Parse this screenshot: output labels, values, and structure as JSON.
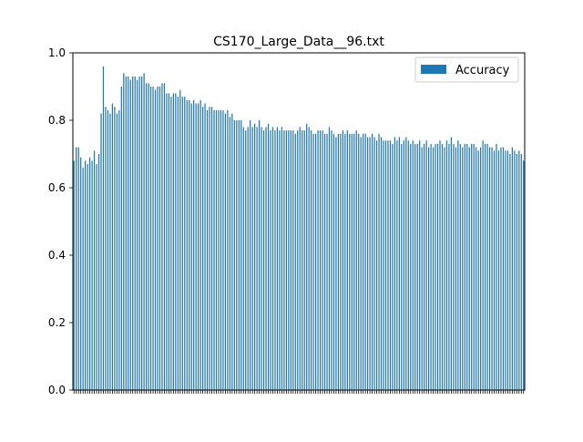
{
  "chart_data": {
    "type": "bar",
    "title": "CS170_Large_Data__96.txt",
    "xlabel": "",
    "ylabel": "",
    "ylim": [
      0.0,
      1.0
    ],
    "yticks": [
      "0.0",
      "0.2",
      "0.4",
      "0.6",
      "0.8",
      "1.0"
    ],
    "grid": false,
    "legend": {
      "placement": "top-right"
    },
    "bar_color": "#1f77b4",
    "series": [
      {
        "name": "Accuracy",
        "values": [
          0.68,
          0.72,
          0.72,
          0.69,
          0.66,
          0.68,
          0.67,
          0.69,
          0.68,
          0.71,
          0.67,
          0.7,
          0.82,
          0.96,
          0.84,
          0.83,
          0.82,
          0.85,
          0.84,
          0.82,
          0.83,
          0.9,
          0.94,
          0.93,
          0.93,
          0.92,
          0.93,
          0.93,
          0.92,
          0.93,
          0.93,
          0.94,
          0.91,
          0.91,
          0.9,
          0.9,
          0.89,
          0.9,
          0.9,
          0.91,
          0.91,
          0.88,
          0.88,
          0.87,
          0.88,
          0.88,
          0.87,
          0.89,
          0.87,
          0.87,
          0.86,
          0.86,
          0.85,
          0.86,
          0.85,
          0.85,
          0.86,
          0.84,
          0.85,
          0.83,
          0.84,
          0.84,
          0.83,
          0.83,
          0.83,
          0.83,
          0.83,
          0.82,
          0.83,
          0.81,
          0.82,
          0.8,
          0.8,
          0.8,
          0.8,
          0.78,
          0.77,
          0.78,
          0.8,
          0.78,
          0.79,
          0.78,
          0.8,
          0.78,
          0.77,
          0.78,
          0.79,
          0.77,
          0.78,
          0.77,
          0.78,
          0.77,
          0.78,
          0.77,
          0.77,
          0.77,
          0.77,
          0.77,
          0.76,
          0.77,
          0.78,
          0.77,
          0.77,
          0.79,
          0.78,
          0.77,
          0.76,
          0.76,
          0.77,
          0.77,
          0.77,
          0.76,
          0.76,
          0.78,
          0.77,
          0.76,
          0.75,
          0.76,
          0.76,
          0.77,
          0.76,
          0.77,
          0.76,
          0.76,
          0.76,
          0.77,
          0.76,
          0.75,
          0.76,
          0.76,
          0.75,
          0.75,
          0.76,
          0.75,
          0.74,
          0.76,
          0.75,
          0.74,
          0.74,
          0.74,
          0.74,
          0.73,
          0.75,
          0.74,
          0.75,
          0.73,
          0.74,
          0.75,
          0.74,
          0.73,
          0.74,
          0.73,
          0.73,
          0.74,
          0.72,
          0.73,
          0.74,
          0.72,
          0.73,
          0.72,
          0.73,
          0.73,
          0.74,
          0.73,
          0.72,
          0.74,
          0.73,
          0.75,
          0.73,
          0.72,
          0.74,
          0.73,
          0.72,
          0.73,
          0.73,
          0.72,
          0.73,
          0.73,
          0.72,
          0.71,
          0.72,
          0.74,
          0.73,
          0.73,
          0.72,
          0.72,
          0.71,
          0.73,
          0.71,
          0.72,
          0.72,
          0.71,
          0.71,
          0.7,
          0.72,
          0.71,
          0.7,
          0.71,
          0.7,
          0.68
        ]
      }
    ]
  }
}
